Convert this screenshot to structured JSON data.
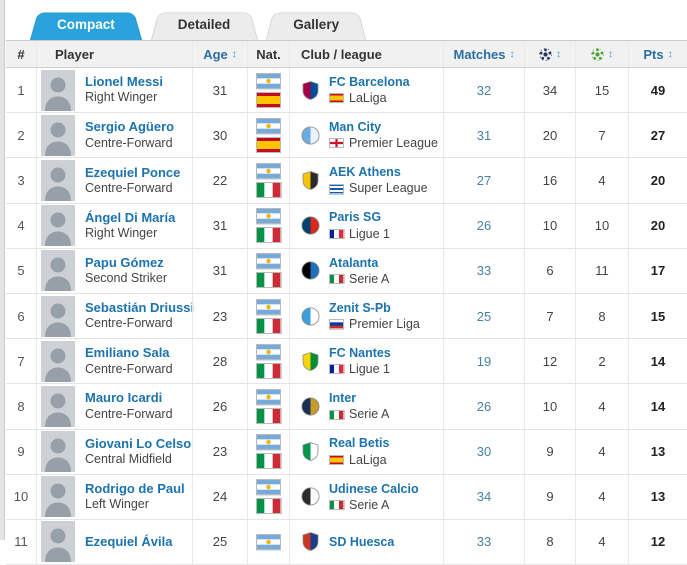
{
  "tabs": [
    {
      "label": "Compact",
      "active": true
    },
    {
      "label": "Detailed",
      "active": false
    },
    {
      "label": "Gallery",
      "active": false
    }
  ],
  "table": {
    "columns": {
      "rank": "#",
      "player": "Player",
      "age": "Age",
      "nat": "Nat.",
      "club": "Club / league",
      "matches": "Matches",
      "goals_icon": "goals-ball",
      "assists_icon": "assists-ball",
      "pts": "Pts"
    },
    "sort_icon": "↕",
    "rows": [
      {
        "rank": "1",
        "name": "Lionel Messi",
        "position": "Right Winger",
        "age": "31",
        "nat": [
          "argentina",
          "spain"
        ],
        "club": "FC Barcelona",
        "league": "LaLiga",
        "league_flag": "spain",
        "crest": "barcelona",
        "matches": "32",
        "goals": "34",
        "assists": "15",
        "pts": "49"
      },
      {
        "rank": "2",
        "name": "Sergio Agüero",
        "position": "Centre-Forward",
        "age": "30",
        "nat": [
          "argentina",
          "spain"
        ],
        "club": "Man City",
        "league": "Premier League",
        "league_flag": "england",
        "crest": "mancity",
        "matches": "31",
        "goals": "20",
        "assists": "7",
        "pts": "27"
      },
      {
        "rank": "3",
        "name": "Ezequiel Ponce",
        "position": "Centre-Forward",
        "age": "22",
        "nat": [
          "argentina",
          "italy"
        ],
        "club": "AEK Athens",
        "league": "Super League",
        "league_flag": "greece",
        "crest": "aek",
        "matches": "27",
        "goals": "16",
        "assists": "4",
        "pts": "20"
      },
      {
        "rank": "4",
        "name": "Ángel Di María",
        "position": "Right Winger",
        "age": "31",
        "nat": [
          "argentina",
          "italy"
        ],
        "club": "Paris SG",
        "league": "Ligue 1",
        "league_flag": "france",
        "crest": "psg",
        "matches": "26",
        "goals": "10",
        "assists": "10",
        "pts": "20"
      },
      {
        "rank": "5",
        "name": "Papu Gómez",
        "position": "Second Striker",
        "age": "31",
        "nat": [
          "argentina",
          "italy"
        ],
        "club": "Atalanta",
        "league": "Serie A",
        "league_flag": "italy",
        "crest": "atalanta",
        "matches": "33",
        "goals": "6",
        "assists": "11",
        "pts": "17"
      },
      {
        "rank": "6",
        "name": "Sebastián Driussi",
        "position": "Centre-Forward",
        "age": "23",
        "nat": [
          "argentina",
          "italy"
        ],
        "club": "Zenit S-Pb",
        "league": "Premier Liga",
        "league_flag": "russia",
        "crest": "zenit",
        "matches": "25",
        "goals": "7",
        "assists": "8",
        "pts": "15"
      },
      {
        "rank": "7",
        "name": "Emiliano Sala",
        "position": "Centre-Forward",
        "age": "28",
        "nat": [
          "argentina",
          "italy"
        ],
        "club": "FC Nantes",
        "league": "Ligue 1",
        "league_flag": "france",
        "crest": "nantes",
        "matches": "19",
        "goals": "12",
        "assists": "2",
        "pts": "14"
      },
      {
        "rank": "8",
        "name": "Mauro Icardi",
        "position": "Centre-Forward",
        "age": "26",
        "nat": [
          "argentina",
          "italy"
        ],
        "club": "Inter",
        "league": "Serie A",
        "league_flag": "italy",
        "crest": "inter",
        "matches": "26",
        "goals": "10",
        "assists": "4",
        "pts": "14"
      },
      {
        "rank": "9",
        "name": "Giovani Lo Celso",
        "position": "Central Midfield",
        "age": "23",
        "nat": [
          "argentina",
          "italy"
        ],
        "club": "Real Betis",
        "league": "LaLiga",
        "league_flag": "spain",
        "crest": "betis",
        "matches": "30",
        "goals": "9",
        "assists": "4",
        "pts": "13"
      },
      {
        "rank": "10",
        "name": "Rodrigo de Paul",
        "position": "Left Winger",
        "age": "24",
        "nat": [
          "argentina",
          "italy"
        ],
        "club": "Udinese Calcio",
        "league": "Serie A",
        "league_flag": "italy",
        "crest": "udinese",
        "matches": "34",
        "goals": "9",
        "assists": "4",
        "pts": "13"
      },
      {
        "rank": "11",
        "name": "Ezequiel Ávila",
        "position": "",
        "age": "25",
        "nat": [
          "argentina"
        ],
        "club": "SD Huesca",
        "league": "",
        "league_flag": "",
        "crest": "huesca",
        "matches": "33",
        "goals": "8",
        "assists": "4",
        "pts": "12"
      }
    ]
  },
  "colors": {
    "accent_blue": "#2aa3dc",
    "link_blue": "#1c73ad",
    "header_sort_blue": "#2d6f9f",
    "goals_ball": "#22395c",
    "assists_ball": "#4f9e3d"
  }
}
